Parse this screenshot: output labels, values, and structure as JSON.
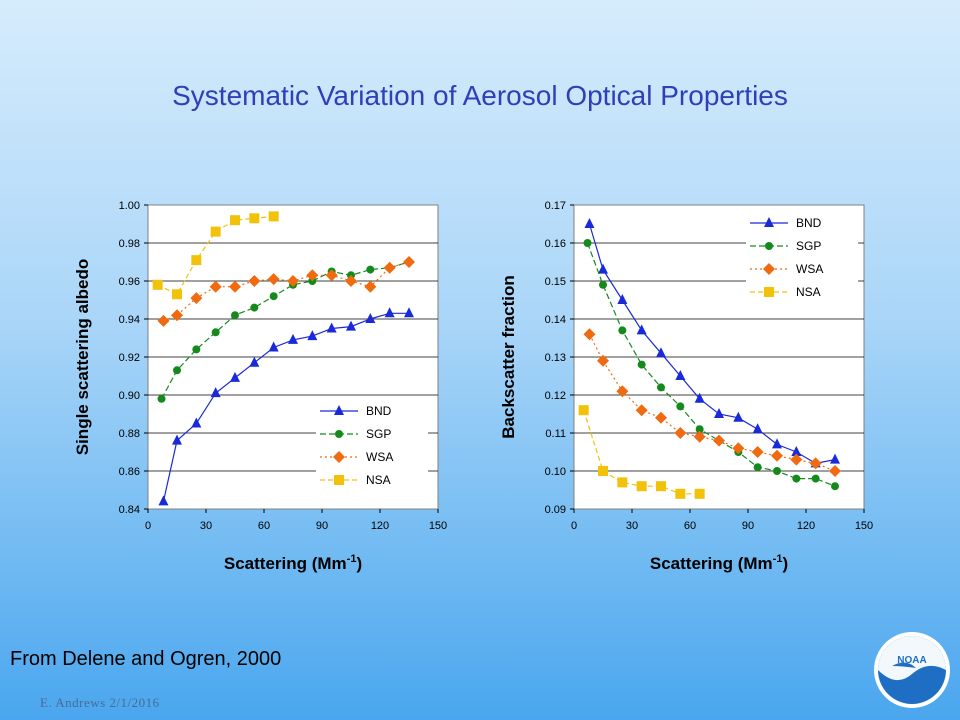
{
  "slide": {
    "title": "Systematic Variation of Aerosol Optical Properties",
    "citation": "From Delene and Ogren, 2000",
    "footer": "E. Andrews   2/1/2016",
    "logo_text": "NOAA"
  },
  "colors": {
    "BND": "#1a2ad8",
    "SGP": "#148a1c",
    "WSA": "#f06a10",
    "NSA": "#f2c20a"
  },
  "chart_data": [
    {
      "type": "line",
      "xlabel": "Scattering (Mm",
      "xlabel_sup": "-1",
      "xlabel_end": ")",
      "ylabel": "Single scattering albedo",
      "xlim": [
        0,
        150
      ],
      "ylim": [
        0.84,
        1.0
      ],
      "xticks": [
        0,
        30,
        60,
        90,
        120,
        150
      ],
      "yticks": [
        "0.84",
        "0.86",
        "0.88",
        "0.90",
        "0.92",
        "0.94",
        "0.96",
        "0.98",
        "1.00"
      ],
      "grid": true,
      "legend_position": "bottom-right",
      "series": [
        {
          "name": "BND",
          "marker": "triangle",
          "dash": "",
          "x": [
            8,
            15,
            25,
            35,
            45,
            55,
            65,
            75,
            85,
            95,
            105,
            115,
            125,
            135
          ],
          "y": [
            0.844,
            0.876,
            0.885,
            0.901,
            0.909,
            0.917,
            0.925,
            0.929,
            0.931,
            0.935,
            0.936,
            0.94,
            0.943,
            0.943
          ]
        },
        {
          "name": "SGP",
          "marker": "circle",
          "dash": "6,3",
          "x": [
            7,
            15,
            25,
            35,
            45,
            55,
            65,
            75,
            85,
            95,
            105,
            115,
            125,
            135
          ],
          "y": [
            0.898,
            0.913,
            0.924,
            0.933,
            0.942,
            0.946,
            0.952,
            0.958,
            0.96,
            0.965,
            0.963,
            0.966,
            0.967,
            0.97
          ]
        },
        {
          "name": "WSA",
          "marker": "diamond",
          "dash": "2,3",
          "x": [
            8,
            15,
            25,
            35,
            45,
            55,
            65,
            75,
            85,
            95,
            105,
            115,
            125,
            135
          ],
          "y": [
            0.939,
            0.942,
            0.951,
            0.957,
            0.957,
            0.96,
            0.961,
            0.96,
            0.963,
            0.963,
            0.96,
            0.957,
            0.967,
            0.97
          ]
        },
        {
          "name": "NSA",
          "marker": "square",
          "dash": "5,3",
          "x": [
            5,
            15,
            25,
            35,
            45,
            55,
            65
          ],
          "y": [
            0.958,
            0.953,
            0.971,
            0.986,
            0.992,
            0.993,
            0.994
          ]
        }
      ]
    },
    {
      "type": "line",
      "xlabel": "Scattering (Mm",
      "xlabel_sup": "-1",
      "xlabel_end": ")",
      "ylabel": "Backscatter fraction",
      "xlim": [
        0,
        150
      ],
      "ylim": [
        0.09,
        0.17
      ],
      "xticks": [
        0,
        30,
        60,
        90,
        120,
        150
      ],
      "yticks": [
        "0.09",
        "0.10",
        "0.11",
        "0.12",
        "0.13",
        "0.14",
        "0.15",
        "0.16",
        "0.17"
      ],
      "grid": true,
      "legend_position": "top-right",
      "series": [
        {
          "name": "BND",
          "marker": "triangle",
          "dash": "",
          "x": [
            8,
            15,
            25,
            35,
            45,
            55,
            65,
            75,
            85,
            95,
            105,
            115,
            125,
            135
          ],
          "y": [
            0.165,
            0.153,
            0.145,
            0.137,
            0.131,
            0.125,
            0.119,
            0.115,
            0.114,
            0.111,
            0.107,
            0.105,
            0.102,
            0.103
          ]
        },
        {
          "name": "SGP",
          "marker": "circle",
          "dash": "6,3",
          "x": [
            7,
            15,
            25,
            35,
            45,
            55,
            65,
            75,
            85,
            95,
            105,
            115,
            125,
            135
          ],
          "y": [
            0.16,
            0.149,
            0.137,
            0.128,
            0.122,
            0.117,
            0.111,
            0.108,
            0.105,
            0.101,
            0.1,
            0.098,
            0.098,
            0.096
          ]
        },
        {
          "name": "WSA",
          "marker": "diamond",
          "dash": "2,3",
          "x": [
            8,
            15,
            25,
            35,
            45,
            55,
            65,
            75,
            85,
            95,
            105,
            115,
            125,
            135
          ],
          "y": [
            0.136,
            0.129,
            0.121,
            0.116,
            0.114,
            0.11,
            0.109,
            0.108,
            0.106,
            0.105,
            0.104,
            0.103,
            0.102,
            0.1
          ]
        },
        {
          "name": "NSA",
          "marker": "square",
          "dash": "5,3",
          "x": [
            5,
            15,
            25,
            35,
            45,
            55,
            65
          ],
          "y": [
            0.116,
            0.1,
            0.097,
            0.096,
            0.096,
            0.094,
            0.094
          ]
        }
      ]
    }
  ]
}
